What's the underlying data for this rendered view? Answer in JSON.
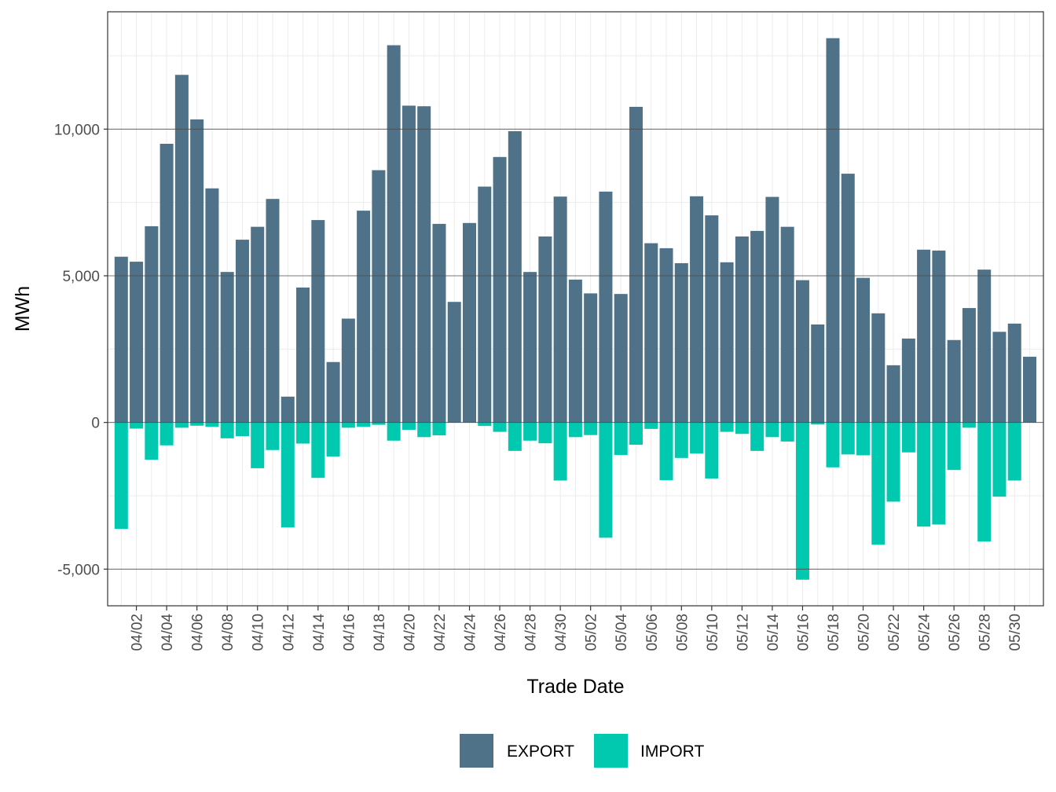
{
  "chart_data": {
    "type": "bar",
    "stacked": true,
    "xlabel": "Trade Date",
    "ylabel": "MWh",
    "ylim": [
      -6250,
      14000
    ],
    "yticks": [
      -5000,
      0,
      5000,
      10000
    ],
    "ytick_labels": [
      "-5,000",
      "0",
      "5,000",
      "10,000"
    ],
    "grid": true,
    "legend_position": "bottom",
    "categories": [
      "04/01",
      "04/02",
      "04/03",
      "04/04",
      "04/05",
      "04/06",
      "04/07",
      "04/08",
      "04/09",
      "04/10",
      "04/11",
      "04/12",
      "04/13",
      "04/14",
      "04/15",
      "04/16",
      "04/17",
      "04/18",
      "04/19",
      "04/20",
      "04/21",
      "04/22",
      "04/23",
      "04/24",
      "04/25",
      "04/26",
      "04/27",
      "04/28",
      "04/29",
      "04/30",
      "05/01",
      "05/02",
      "05/03",
      "05/04",
      "05/05",
      "05/06",
      "05/07",
      "05/08",
      "05/09",
      "05/10",
      "05/11",
      "05/12",
      "05/13",
      "05/14",
      "05/15",
      "05/16",
      "05/17",
      "05/18",
      "05/19",
      "05/20",
      "05/21",
      "05/22",
      "05/23",
      "05/24",
      "05/25",
      "05/26",
      "05/27",
      "05/28",
      "05/29",
      "05/30",
      "05/31"
    ],
    "xtick_labels": [
      "04/02",
      "04/04",
      "04/06",
      "04/08",
      "04/10",
      "04/12",
      "04/14",
      "04/16",
      "04/18",
      "04/20",
      "04/22",
      "04/24",
      "04/26",
      "04/28",
      "04/30",
      "05/02",
      "05/04",
      "05/06",
      "05/08",
      "05/10",
      "05/12",
      "05/14",
      "05/16",
      "05/18",
      "05/20",
      "05/22",
      "05/24",
      "05/26",
      "05/28",
      "05/30"
    ],
    "series": [
      {
        "name": "EXPORT",
        "color": "#4f7288",
        "values": [
          5650,
          5480,
          6690,
          9500,
          11850,
          10330,
          7980,
          5130,
          6230,
          6670,
          7620,
          880,
          4600,
          6900,
          2060,
          3540,
          7220,
          8600,
          12860,
          10800,
          10780,
          6770,
          4110,
          6800,
          8040,
          9050,
          9930,
          5130,
          6340,
          7700,
          4870,
          4400,
          7870,
          4380,
          10760,
          6110,
          5940,
          5430,
          7710,
          7060,
          5460,
          6340,
          6530,
          7690,
          6670,
          4850,
          3340,
          13100,
          8480,
          4930,
          3720,
          1950,
          2860,
          5890,
          5860,
          2810,
          3900,
          5210,
          3090,
          3370,
          2240
        ]
      },
      {
        "name": "IMPORT",
        "color": "#00c9b0",
        "values": [
          -3630,
          -210,
          -1270,
          -780,
          -180,
          -110,
          -150,
          -540,
          -470,
          -1560,
          -940,
          -3580,
          -720,
          -1890,
          -1160,
          -180,
          -150,
          -80,
          -620,
          -250,
          -500,
          -440,
          0,
          0,
          -120,
          -320,
          -970,
          -620,
          -710,
          -1980,
          -500,
          -430,
          -3930,
          -1110,
          -760,
          -220,
          -1970,
          -1210,
          -1060,
          -1910,
          -320,
          -390,
          -970,
          -500,
          -650,
          -5360,
          -70,
          -1530,
          -1090,
          -1120,
          -4170,
          -2700,
          -1020,
          -3550,
          -3480,
          -1620,
          -180,
          -4060,
          -2530,
          -1980,
          0
        ]
      }
    ]
  }
}
